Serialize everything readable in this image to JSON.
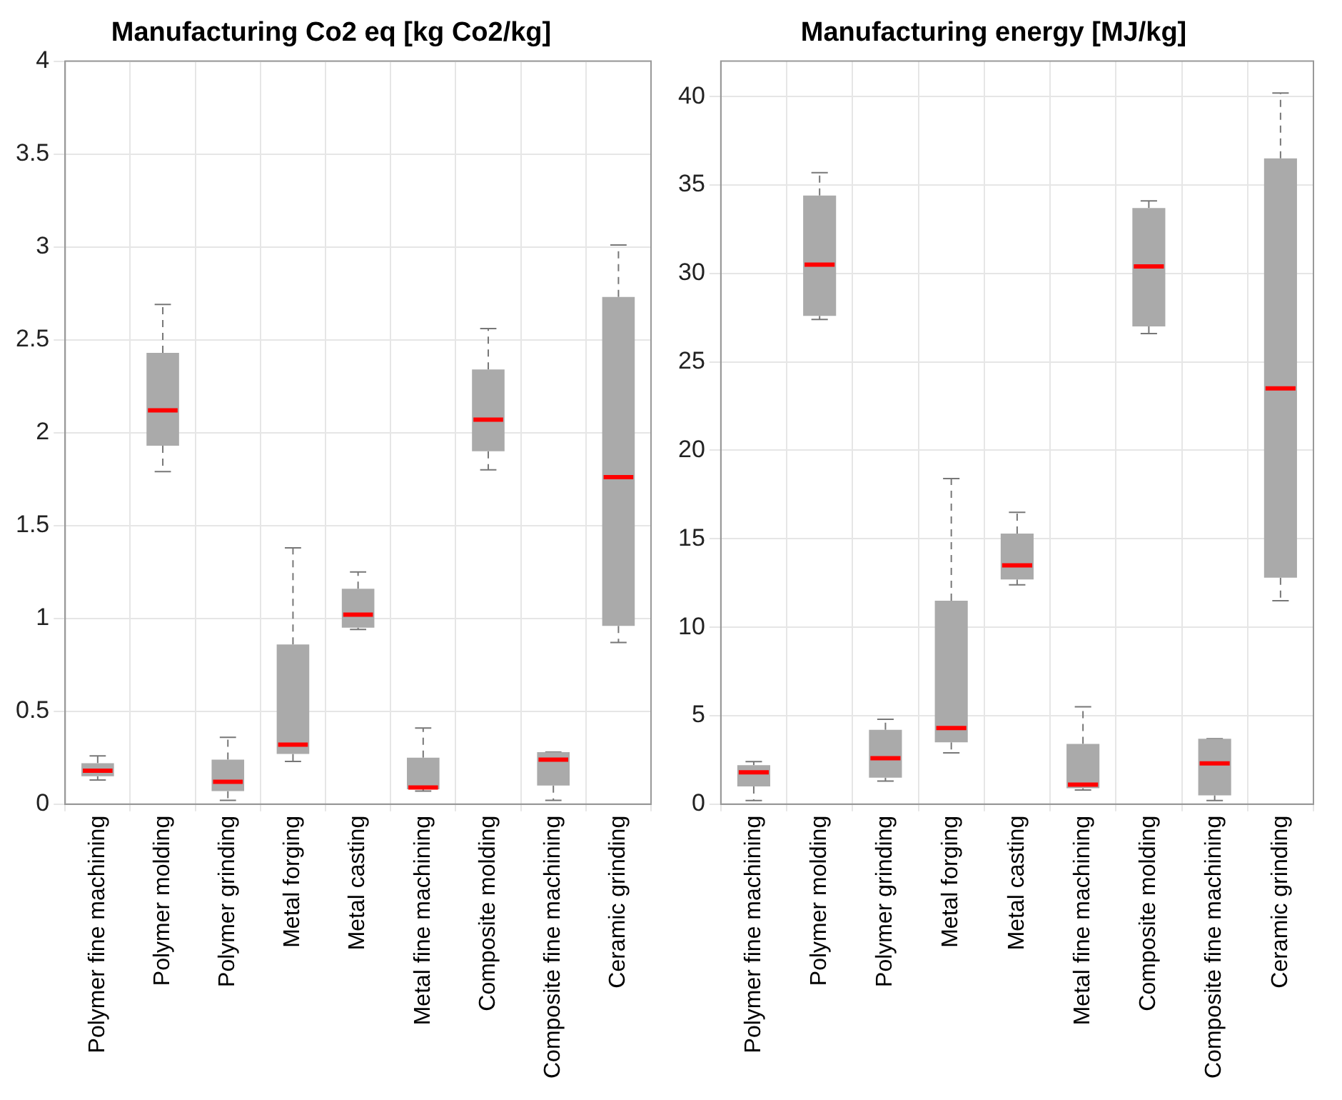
{
  "chart_data": [
    {
      "type": "box",
      "title": "Manufacturing Co2 eq [kg Co2/kg]",
      "categories": [
        "Polymer fine machining",
        "Polymer molding",
        "Polymer grinding",
        "Metal forging",
        "Metal casting",
        "Metal fine machining",
        "Composite molding",
        "Composite fine machining",
        "Ceramic grinding"
      ],
      "series": [
        {
          "color": "#aaaaaa",
          "boxes": [
            {
              "low": 0.13,
              "q1": 0.15,
              "median": 0.18,
              "q3": 0.22,
              "high": 0.26
            },
            {
              "low": 1.79,
              "q1": 1.93,
              "median": 2.12,
              "q3": 2.43,
              "high": 2.69
            },
            {
              "low": 0.02,
              "q1": 0.07,
              "median": 0.12,
              "q3": 0.24,
              "high": 0.36
            },
            {
              "low": 0.23,
              "q1": 0.27,
              "median": 0.32,
              "q3": 0.86,
              "high": 1.38
            },
            {
              "low": 0.94,
              "q1": 0.95,
              "median": 1.02,
              "q3": 1.16,
              "high": 1.25
            },
            {
              "low": 0.07,
              "q1": 0.08,
              "median": 0.09,
              "q3": 0.25,
              "high": 0.41
            },
            {
              "low": 1.8,
              "q1": 1.9,
              "median": 2.07,
              "q3": 2.34,
              "high": 2.56
            },
            {
              "low": 0.02,
              "q1": 0.1,
              "median": 0.24,
              "q3": 0.28,
              "high": 0.28
            },
            {
              "low": 0.87,
              "q1": 0.96,
              "median": 1.76,
              "q3": 2.73,
              "high": 3.01
            }
          ]
        }
      ],
      "ylim": [
        0,
        4
      ],
      "yticks": [
        0,
        0.5,
        1,
        1.5,
        2,
        2.5,
        3,
        3.5,
        4
      ],
      "grid": true
    },
    {
      "type": "box",
      "title": "Manufacturing energy [MJ/kg]",
      "categories": [
        "Polymer fine machining",
        "Polymer molding",
        "Polymer grinding",
        "Metal forging",
        "Metal casting",
        "Metal fine machining",
        "Composite molding",
        "Composite fine machining",
        "Ceramic grinding"
      ],
      "series": [
        {
          "color": "#aaaaaa",
          "boxes": [
            {
              "low": 0.2,
              "q1": 1.0,
              "median": 1.8,
              "q3": 2.2,
              "high": 2.4
            },
            {
              "low": 27.4,
              "q1": 27.6,
              "median": 30.5,
              "q3": 34.4,
              "high": 35.7
            },
            {
              "low": 1.3,
              "q1": 1.5,
              "median": 2.6,
              "q3": 4.2,
              "high": 4.8
            },
            {
              "low": 2.9,
              "q1": 3.5,
              "median": 4.3,
              "q3": 11.5,
              "high": 18.4
            },
            {
              "low": 12.4,
              "q1": 12.7,
              "median": 13.5,
              "q3": 15.3,
              "high": 16.5
            },
            {
              "low": 0.8,
              "q1": 0.9,
              "median": 1.1,
              "q3": 3.4,
              "high": 5.5
            },
            {
              "low": 26.6,
              "q1": 27.0,
              "median": 30.4,
              "q3": 33.7,
              "high": 34.1
            },
            {
              "low": 0.2,
              "q1": 0.5,
              "median": 2.3,
              "q3": 3.7,
              "high": 3.7
            },
            {
              "low": 11.5,
              "q1": 12.8,
              "median": 23.5,
              "q3": 36.5,
              "high": 40.2
            }
          ]
        }
      ],
      "ylim": [
        0,
        42
      ],
      "yticks": [
        0,
        5,
        10,
        15,
        20,
        25,
        30,
        35,
        40
      ],
      "grid": true
    }
  ]
}
